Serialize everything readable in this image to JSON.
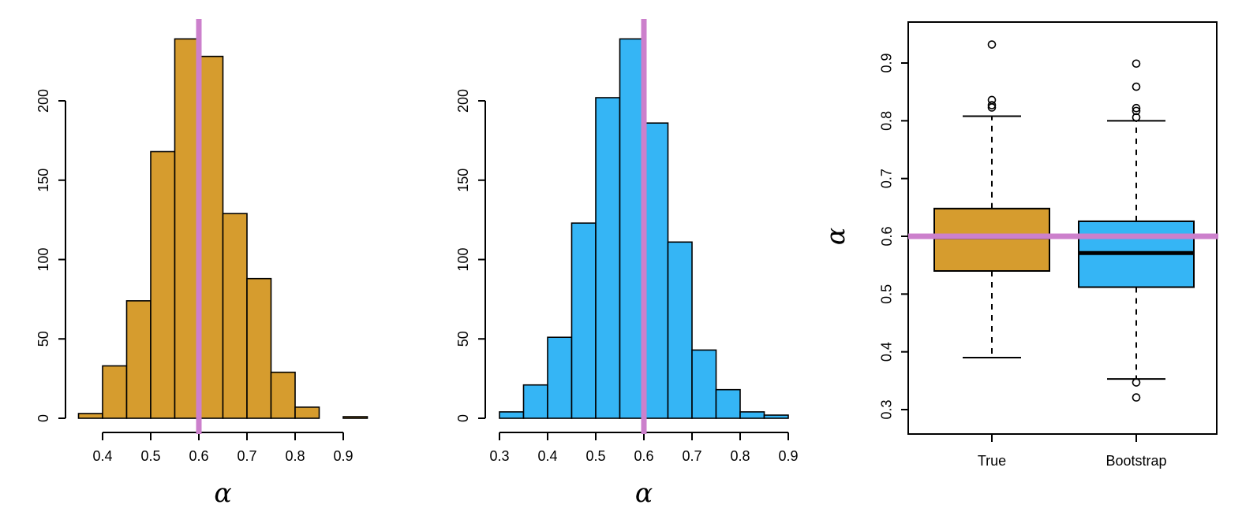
{
  "figure": {
    "background": "#ffffff",
    "reference_line_color": "#CC80CC",
    "axis_color": "#000000",
    "alpha_label": "α"
  },
  "chart_data": [
    {
      "type": "bar",
      "subtype": "histogram",
      "id": "true-sampling-histogram",
      "title": "",
      "xlabel": "α",
      "ylabel": "",
      "bar_color": "#D69C2E",
      "bar_border_color": "#000000",
      "bin_start": 0.35,
      "bin_width": 0.05,
      "counts": [
        3,
        33,
        74,
        168,
        239,
        228,
        129,
        88,
        29,
        7,
        0,
        1
      ],
      "x_ticks": [
        0.4,
        0.5,
        0.6,
        0.7,
        0.8,
        0.9
      ],
      "x_tick_labels": [
        "0.4",
        "0.5",
        "0.6",
        "0.7",
        "0.8",
        "0.9"
      ],
      "y_ticks": [
        0,
        50,
        100,
        150,
        200
      ],
      "y_tick_labels": [
        "0",
        "50",
        "100",
        "150",
        "200"
      ],
      "xlim": [
        0.35,
        0.95
      ],
      "ylim": [
        0,
        245
      ],
      "grid": false,
      "vline": 0.6
    },
    {
      "type": "bar",
      "subtype": "histogram",
      "id": "bootstrap-histogram",
      "title": "",
      "xlabel": "α",
      "ylabel": "",
      "bar_color": "#35B5F5",
      "bar_border_color": "#000000",
      "bin_start": 0.3,
      "bin_width": 0.05,
      "counts": [
        4,
        21,
        51,
        123,
        202,
        239,
        186,
        111,
        43,
        18,
        4,
        2
      ],
      "x_ticks": [
        0.3,
        0.4,
        0.5,
        0.6,
        0.7,
        0.8,
        0.9
      ],
      "x_tick_labels": [
        "0.3",
        "0.4",
        "0.5",
        "0.6",
        "0.7",
        "0.8",
        "0.9"
      ],
      "y_ticks": [
        0,
        50,
        100,
        150,
        200
      ],
      "y_tick_labels": [
        "0",
        "50",
        "100",
        "150",
        "200"
      ],
      "xlim": [
        0.3,
        0.9
      ],
      "ylim": [
        0,
        245
      ],
      "grid": false,
      "vline": 0.6
    },
    {
      "type": "boxplot",
      "id": "true-vs-bootstrap-boxplot",
      "title": "",
      "xlabel": "",
      "ylabel": "α",
      "y_ticks": [
        0.3,
        0.4,
        0.5,
        0.6,
        0.7,
        0.8,
        0.9
      ],
      "y_tick_labels": [
        "0.3",
        "0.4",
        "0.5",
        "0.6",
        "0.7",
        "0.8",
        "0.9"
      ],
      "ylim": [
        0.26,
        0.97
      ],
      "grid": false,
      "hline": 0.6,
      "groups": [
        {
          "label": "True",
          "box_color": "#D69C2E",
          "q1": 0.54,
          "median": 0.597,
          "q3": 0.648,
          "whisker_low": 0.39,
          "whisker_high": 0.808,
          "outliers": [
            0.823,
            0.827,
            0.836,
            0.932
          ],
          "median_stroke_width": 3
        },
        {
          "label": "Bootstrap",
          "box_color": "#35B5F5",
          "q1": 0.512,
          "median": 0.571,
          "q3": 0.626,
          "whisker_low": 0.353,
          "whisker_high": 0.8,
          "outliers": [
            0.806,
            0.817,
            0.822,
            0.859,
            0.899,
            0.347,
            0.321
          ],
          "median_stroke_width": 5
        }
      ]
    }
  ]
}
